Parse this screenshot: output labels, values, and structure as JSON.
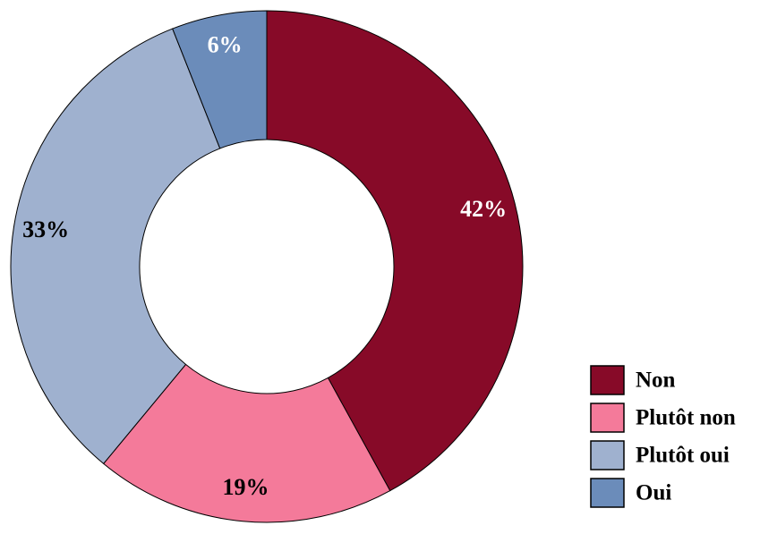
{
  "chart_data": {
    "type": "donut",
    "series": [
      {
        "name": "Non",
        "color": "#870A28",
        "values": [
          42
        ],
        "value_labels": [
          "42%"
        ]
      },
      {
        "name": "Plutôt non",
        "color": "#F47A9A",
        "values": [
          19
        ],
        "value_labels": [
          "19%"
        ]
      },
      {
        "name": "Plutôt oui",
        "color": "#9FB1CF",
        "values": [
          33
        ],
        "value_labels": [
          "33%"
        ]
      },
      {
        "name": "Oui",
        "color": "#6B8CBA",
        "values": [
          6
        ],
        "value_labels": [
          "6%"
        ]
      }
    ],
    "legend": "bottom-right"
  }
}
